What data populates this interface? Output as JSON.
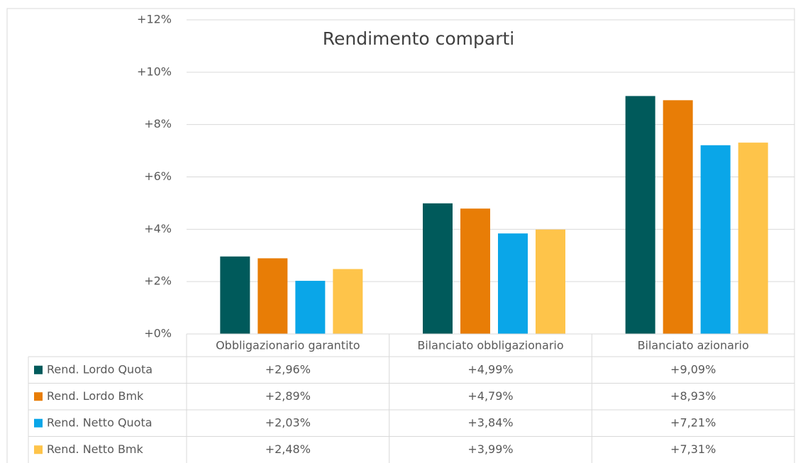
{
  "chart_data": {
    "type": "bar",
    "title": "Rendimento comparti",
    "categories": [
      "Obbligazionario garantito",
      "Bilanciato obbligazionario",
      "Bilanciato azionario"
    ],
    "series": [
      {
        "name": "Rend. Lordo Quota",
        "color": "#005a5b",
        "values": [
          2.96,
          4.99,
          9.09
        ],
        "value_labels": [
          "+2,96%",
          "+4,99%",
          "+9,09%"
        ]
      },
      {
        "name": "Rend. Lordo Bmk",
        "color": "#e87d06",
        "values": [
          2.89,
          4.79,
          8.93
        ],
        "value_labels": [
          "+2,89%",
          "+4,79%",
          "+8,93%"
        ]
      },
      {
        "name": "Rend. Netto Quota",
        "color": "#0aa6e8",
        "values": [
          2.03,
          3.84,
          7.21
        ],
        "value_labels": [
          "+2,03%",
          "+3,84%",
          "+7,21%"
        ]
      },
      {
        "name": "Rend. Netto Bmk",
        "color": "#fec44a",
        "values": [
          2.48,
          3.99,
          7.31
        ],
        "value_labels": [
          "+2,48%",
          "+3,99%",
          "+7,31%"
        ]
      }
    ],
    "ylim": [
      0,
      12
    ],
    "yticks": [
      {
        "value": 0,
        "label": "+0%"
      },
      {
        "value": 2,
        "label": "+2%"
      },
      {
        "value": 4,
        "label": "+4%"
      },
      {
        "value": 6,
        "label": "+6%"
      },
      {
        "value": 8,
        "label": "+8%"
      },
      {
        "value": 10,
        "label": "+10%"
      },
      {
        "value": 12,
        "label": "+12%"
      }
    ],
    "grid": true
  }
}
